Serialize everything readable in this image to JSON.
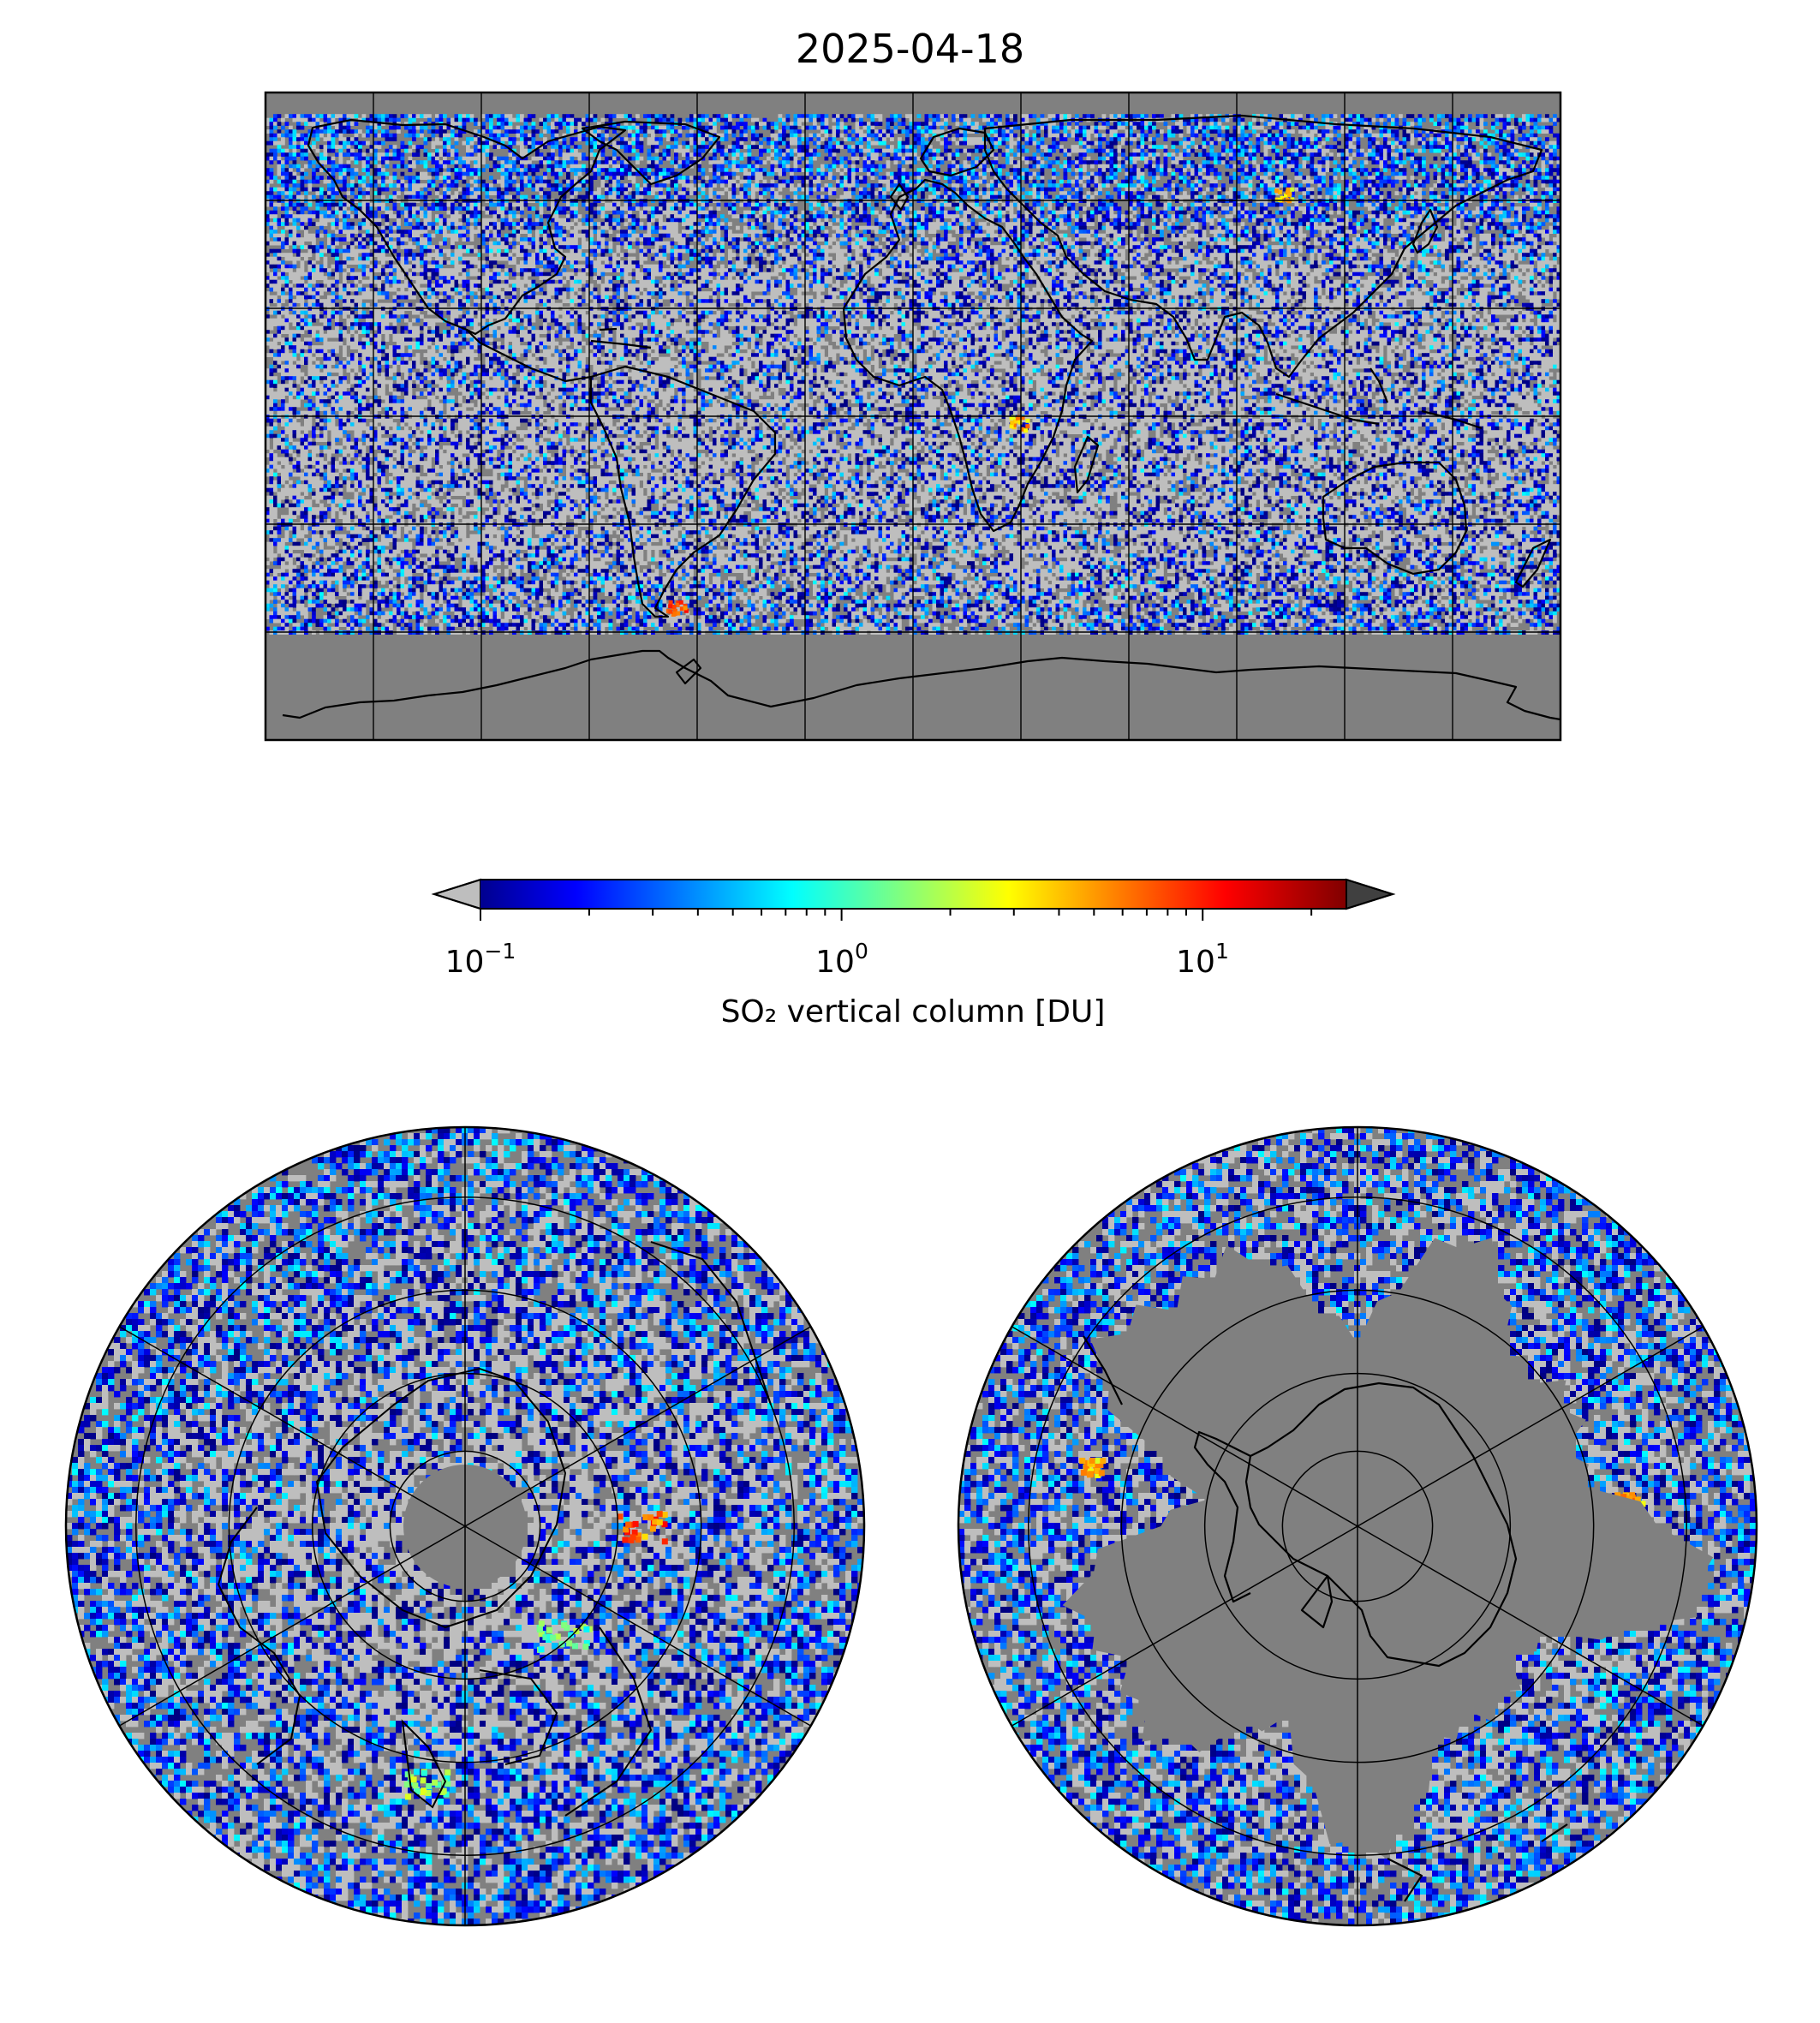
{
  "title": "2025-04-18",
  "colorbar": {
    "label": "SO₂ vertical column [DU]",
    "scale": "log",
    "range": [
      0.1,
      25
    ],
    "ticks": [
      {
        "base": "10",
        "exp": "−1",
        "value": 0.1
      },
      {
        "base": "10",
        "exp": "0",
        "value": 1
      },
      {
        "base": "10",
        "exp": "1",
        "value": 10
      }
    ],
    "extend": "both",
    "under_color": "#bebebe",
    "over_color": "#404040",
    "colormap": "jet"
  },
  "map_style": {
    "ocean_background": "#808080",
    "no_data_color": "#808080",
    "low_value_color": "#bebebe",
    "coastline_color": "#000000",
    "gridline_color": "#000000"
  },
  "panels": [
    {
      "projection": "plate-carree",
      "extent_lon": [
        -180,
        180
      ],
      "extent_lat": [
        -90,
        90
      ],
      "gridlines_lon_step": 30,
      "gridlines_lat_step": 30
    },
    {
      "projection": "north-polar-stereographic",
      "gridlines_lat": [
        30,
        45,
        60,
        75
      ]
    },
    {
      "projection": "south-polar-stereographic",
      "gridlines_lat": [
        -30,
        -45,
        -60,
        -75
      ]
    }
  ],
  "notable_features": [
    {
      "panel": 0,
      "lon": 29,
      "lat": -1.5,
      "value_du": 8
    },
    {
      "panel": 0,
      "lon": 103,
      "lat": 62,
      "value_du": 6
    },
    {
      "panel": 0,
      "lon": -66,
      "lat": -53,
      "value_du": 12
    }
  ]
}
